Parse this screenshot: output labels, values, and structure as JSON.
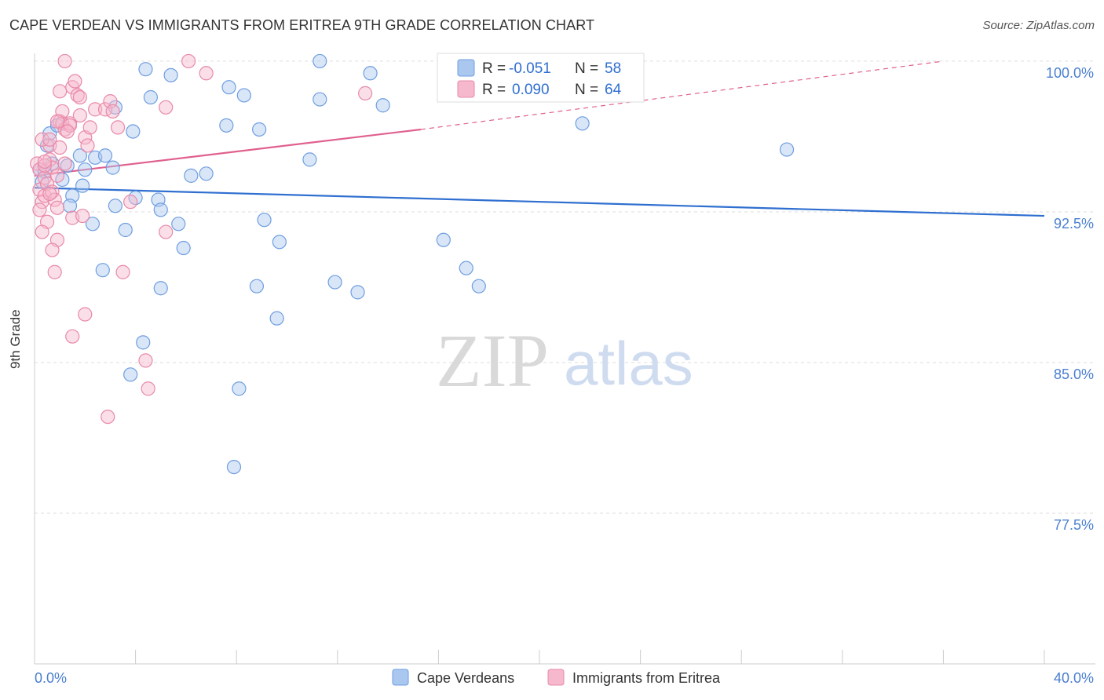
{
  "header": {
    "title": "CAPE VERDEAN VS IMMIGRANTS FROM ERITREA 9TH GRADE CORRELATION CHART",
    "source": "Source: ZipAtlas.com"
  },
  "watermark": {
    "zip": "ZIP",
    "atlas": "atlas"
  },
  "colors": {
    "blue_fill": "#aac8ef",
    "blue_stroke": "#6f9ee0",
    "blue_line": "#2f6fd0",
    "pink_fill": "#f6b8cc",
    "pink_stroke": "#e889a8",
    "pink_line": "#e0608e",
    "grid": "#dddddd",
    "tick_text": "#4a7fd0"
  },
  "legend": {
    "r_label": "R =",
    "n_label": "N =",
    "series": [
      {
        "r": "-0.051",
        "n": "58"
      },
      {
        "r": "0.090",
        "n": "64"
      }
    ]
  },
  "chart_data": {
    "type": "scatter",
    "title": "CAPE VERDEAN VS IMMIGRANTS FROM ERITREA 9TH GRADE CORRELATION CHART",
    "xlabel": "",
    "ylabel": "9th Grade",
    "xlim": [
      0,
      40
    ],
    "ylim": [
      70,
      100.7
    ],
    "x_tick_labels": [
      "0.0%",
      "40.0%"
    ],
    "y_ticks": [
      100,
      92.5,
      85,
      77.5
    ],
    "y_tick_labels": [
      "100.0%",
      "92.5%",
      "85.0%",
      "77.5%"
    ],
    "series": [
      {
        "name": "Cape Verdeans",
        "color": "blue",
        "r": -0.051,
        "n": 58,
        "trend": {
          "x": [
            0,
            40
          ],
          "y": [
            93.7,
            92.3
          ],
          "dashed_from": null
        },
        "points": [
          [
            0.2,
            94.6
          ],
          [
            0.4,
            94.5
          ],
          [
            0.6,
            96.4
          ],
          [
            0.7,
            94.9
          ],
          [
            0.5,
            95.8
          ],
          [
            0.9,
            96.8
          ],
          [
            1.1,
            94.1
          ],
          [
            1.3,
            94.8
          ],
          [
            1.5,
            93.3
          ],
          [
            1.8,
            95.3
          ],
          [
            2.0,
            94.6
          ],
          [
            1.9,
            93.8
          ],
          [
            2.4,
            95.2
          ],
          [
            2.8,
            95.3
          ],
          [
            3.1,
            94.7
          ],
          [
            3.2,
            97.7
          ],
          [
            3.9,
            96.5
          ],
          [
            4.4,
            99.6
          ],
          [
            4.6,
            98.2
          ],
          [
            5.4,
            99.3
          ],
          [
            1.4,
            92.8
          ],
          [
            2.3,
            91.9
          ],
          [
            2.7,
            89.6
          ],
          [
            3.2,
            92.8
          ],
          [
            3.6,
            91.6
          ],
          [
            4.0,
            93.2
          ],
          [
            4.9,
            93.1
          ],
          [
            5.0,
            92.6
          ],
          [
            5.0,
            88.7
          ],
          [
            5.7,
            91.9
          ],
          [
            5.9,
            90.7
          ],
          [
            6.8,
            94.4
          ],
          [
            7.6,
            96.8
          ],
          [
            7.7,
            98.7
          ],
          [
            8.3,
            98.3
          ],
          [
            8.9,
            96.6
          ],
          [
            9.1,
            92.1
          ],
          [
            8.8,
            88.8
          ],
          [
            9.7,
            91.0
          ],
          [
            9.6,
            87.2
          ],
          [
            10.9,
            95.1
          ],
          [
            11.3,
            98.1
          ],
          [
            11.3,
            100.0
          ],
          [
            11.9,
            89.0
          ],
          [
            12.8,
            88.5
          ],
          [
            13.3,
            99.4
          ],
          [
            13.8,
            97.8
          ],
          [
            16.2,
            91.1
          ],
          [
            17.1,
            89.7
          ],
          [
            17.6,
            88.8
          ],
          [
            21.7,
            96.9
          ],
          [
            29.8,
            95.6
          ],
          [
            4.3,
            86.0
          ],
          [
            3.8,
            84.4
          ],
          [
            8.1,
            83.7
          ],
          [
            7.9,
            79.8
          ],
          [
            0.3,
            94.0
          ],
          [
            6.2,
            94.3
          ]
        ]
      },
      {
        "name": "Immigrants from Eritrea",
        "color": "pink",
        "r": 0.09,
        "n": 64,
        "trend": {
          "x": [
            0,
            15.3
          ],
          "y": [
            94.3,
            96.6
          ],
          "dashed_to": [
            36,
            100.0
          ]
        },
        "points": [
          [
            0.1,
            94.9
          ],
          [
            0.2,
            94.6
          ],
          [
            0.2,
            93.6
          ],
          [
            0.3,
            93.0
          ],
          [
            0.2,
            92.6
          ],
          [
            0.4,
            93.3
          ],
          [
            0.4,
            94.2
          ],
          [
            0.5,
            93.9
          ],
          [
            0.5,
            92.0
          ],
          [
            0.3,
            91.5
          ],
          [
            0.6,
            95.1
          ],
          [
            0.6,
            95.8
          ],
          [
            0.7,
            94.7
          ],
          [
            0.7,
            93.5
          ],
          [
            0.8,
            93.1
          ],
          [
            0.9,
            92.7
          ],
          [
            0.9,
            91.1
          ],
          [
            0.7,
            90.6
          ],
          [
            0.8,
            89.5
          ],
          [
            0.3,
            96.1
          ],
          [
            0.6,
            96.1
          ],
          [
            1.0,
            95.7
          ],
          [
            1.0,
            97.0
          ],
          [
            1.1,
            96.9
          ],
          [
            1.2,
            96.6
          ],
          [
            1.1,
            97.5
          ],
          [
            1.0,
            98.5
          ],
          [
            1.4,
            96.9
          ],
          [
            1.4,
            96.8
          ],
          [
            1.5,
            98.7
          ],
          [
            1.6,
            99.0
          ],
          [
            1.7,
            98.3
          ],
          [
            1.8,
            98.2
          ],
          [
            1.8,
            97.3
          ],
          [
            2.0,
            96.2
          ],
          [
            2.1,
            95.8
          ],
          [
            2.2,
            96.7
          ],
          [
            2.4,
            97.6
          ],
          [
            2.8,
            97.6
          ],
          [
            3.0,
            98.0
          ],
          [
            3.1,
            97.5
          ],
          [
            3.3,
            96.7
          ],
          [
            1.2,
            100.0
          ],
          [
            6.1,
            100.0
          ],
          [
            6.8,
            99.4
          ],
          [
            13.1,
            98.4
          ],
          [
            5.2,
            97.7
          ],
          [
            0.4,
            94.8
          ],
          [
            0.9,
            94.3
          ],
          [
            1.5,
            92.2
          ],
          [
            1.9,
            92.3
          ],
          [
            2.0,
            87.4
          ],
          [
            1.5,
            86.3
          ],
          [
            3.5,
            89.5
          ],
          [
            3.8,
            93.0
          ],
          [
            5.2,
            91.5
          ],
          [
            4.4,
            85.1
          ],
          [
            4.5,
            83.7
          ],
          [
            2.9,
            82.3
          ],
          [
            0.4,
            95.0
          ],
          [
            0.6,
            93.4
          ],
          [
            1.2,
            94.9
          ],
          [
            0.9,
            97.0
          ],
          [
            1.3,
            96.5
          ]
        ]
      }
    ],
    "legend_position": "top-center",
    "bottom_legend": [
      "Cape Verdeans",
      "Immigrants from Eritrea"
    ],
    "grid": true
  }
}
